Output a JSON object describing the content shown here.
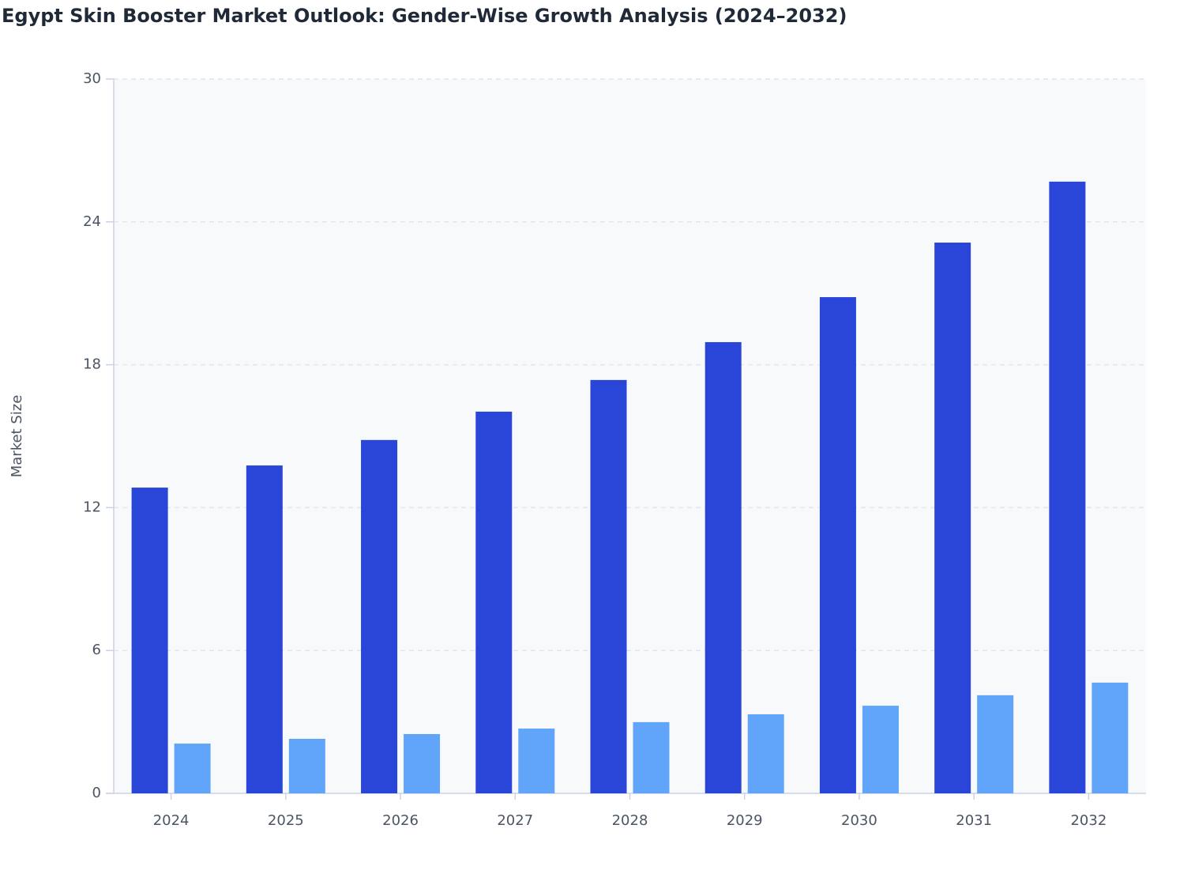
{
  "chart_data": {
    "type": "bar",
    "title": "Egypt Skin Booster Market Outlook: Gender-Wise Growth Analysis (2024–2032)",
    "y_label": "Market Size",
    "categories": [
      "2024",
      "2025",
      "2026",
      "2027",
      "2028",
      "2029",
      "2030",
      "2031",
      "2032"
    ],
    "series": [
      {
        "color": "#2946d9",
        "values": [
          12.84,
          13.77,
          14.84,
          16.03,
          17.36,
          18.95,
          20.84,
          23.13,
          25.69
        ]
      },
      {
        "color": "#60a5fa",
        "values": [
          2.09,
          2.29,
          2.49,
          2.72,
          2.99,
          3.32,
          3.68,
          4.12,
          4.65
        ]
      }
    ],
    "ylim": [
      0,
      30
    ],
    "yticks": [
      0,
      6,
      12,
      18,
      24,
      30
    ],
    "grid": true
  }
}
